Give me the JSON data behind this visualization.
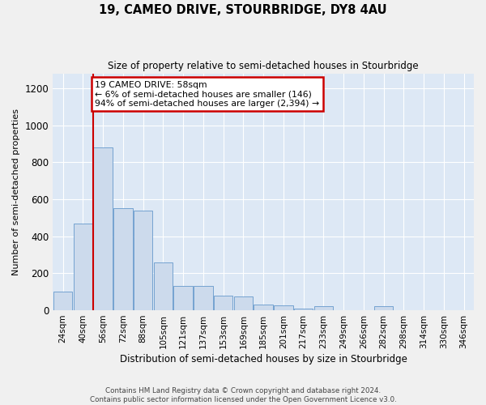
{
  "title": "19, CAMEO DRIVE, STOURBRIDGE, DY8 4AU",
  "subtitle": "Size of property relative to semi-detached houses in Stourbridge",
  "xlabel": "Distribution of semi-detached houses by size in Stourbridge",
  "ylabel": "Number of semi-detached properties",
  "categories": [
    "24sqm",
    "40sqm",
    "56sqm",
    "72sqm",
    "88sqm",
    "105sqm",
    "121sqm",
    "137sqm",
    "153sqm",
    "169sqm",
    "185sqm",
    "201sqm",
    "217sqm",
    "233sqm",
    "249sqm",
    "266sqm",
    "282sqm",
    "298sqm",
    "314sqm",
    "330sqm",
    "346sqm"
  ],
  "bar_heights": [
    100,
    470,
    880,
    550,
    540,
    260,
    130,
    130,
    80,
    75,
    30,
    25,
    10,
    20,
    0,
    0,
    20,
    0,
    0,
    0,
    0
  ],
  "bar_color": "#ccdaec",
  "bar_edgecolor": "#6699cc",
  "vline_position": 1.5,
  "vline_color": "#cc0000",
  "annotation_text": "19 CAMEO DRIVE: 58sqm\n← 6% of semi-detached houses are smaller (146)\n94% of semi-detached houses are larger (2,394) →",
  "annotation_box_facecolor": "#ffffff",
  "annotation_box_edgecolor": "#cc0000",
  "ylim": [
    0,
    1280
  ],
  "yticks": [
    0,
    200,
    400,
    600,
    800,
    1000,
    1200
  ],
  "plot_bg_color": "#dde8f5",
  "grid_color": "#ffffff",
  "fig_bg_color": "#f0f0f0",
  "footer_line1": "Contains HM Land Registry data © Crown copyright and database right 2024.",
  "footer_line2": "Contains public sector information licensed under the Open Government Licence v3.0."
}
